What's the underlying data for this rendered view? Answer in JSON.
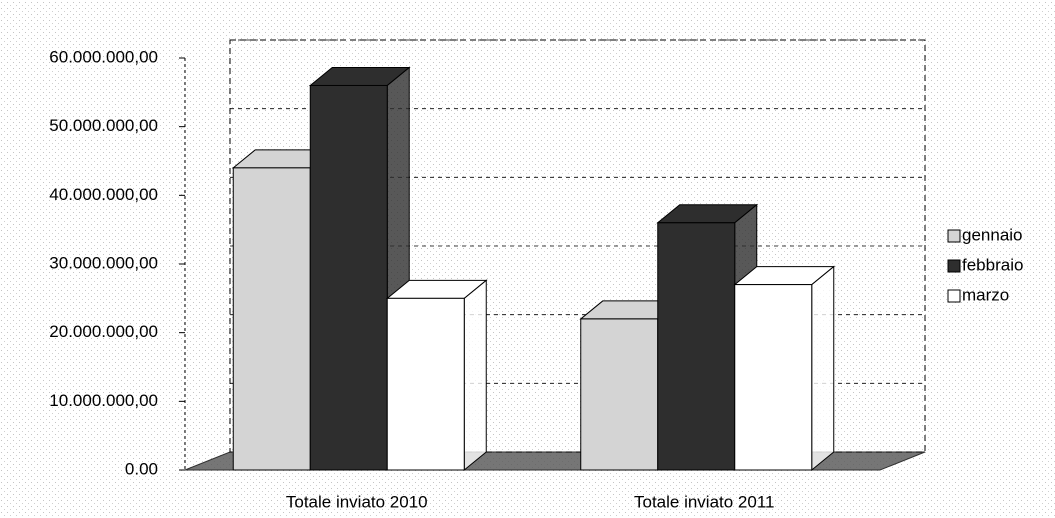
{
  "chart_data": {
    "type": "bar3d",
    "categories": [
      "Totale inviato 2010",
      "Totale inviato 2011"
    ],
    "series": [
      {
        "name": "gennaio",
        "color": "#d4d4d4",
        "values": [
          44000000,
          22000000
        ]
      },
      {
        "name": "febbraio",
        "color": "#2e2e2e",
        "values": [
          56000000,
          36000000
        ]
      },
      {
        "name": "marzo",
        "color": "#ffffff",
        "values": [
          25000000,
          27000000
        ]
      }
    ],
    "ylim": [
      0,
      60000000
    ],
    "yticks": [
      {
        "value": 0,
        "label": "0.00"
      },
      {
        "value": 10000000,
        "label": "10.000.000,00"
      },
      {
        "value": 20000000,
        "label": "20.000.000,00"
      },
      {
        "value": 30000000,
        "label": "30.000.000,00"
      },
      {
        "value": 40000000,
        "label": "40.000.000,00"
      },
      {
        "value": 50000000,
        "label": "50.000.000,00"
      },
      {
        "value": 60000000,
        "label": "60.000.000,00"
      }
    ],
    "grid": true,
    "legend": "right"
  }
}
